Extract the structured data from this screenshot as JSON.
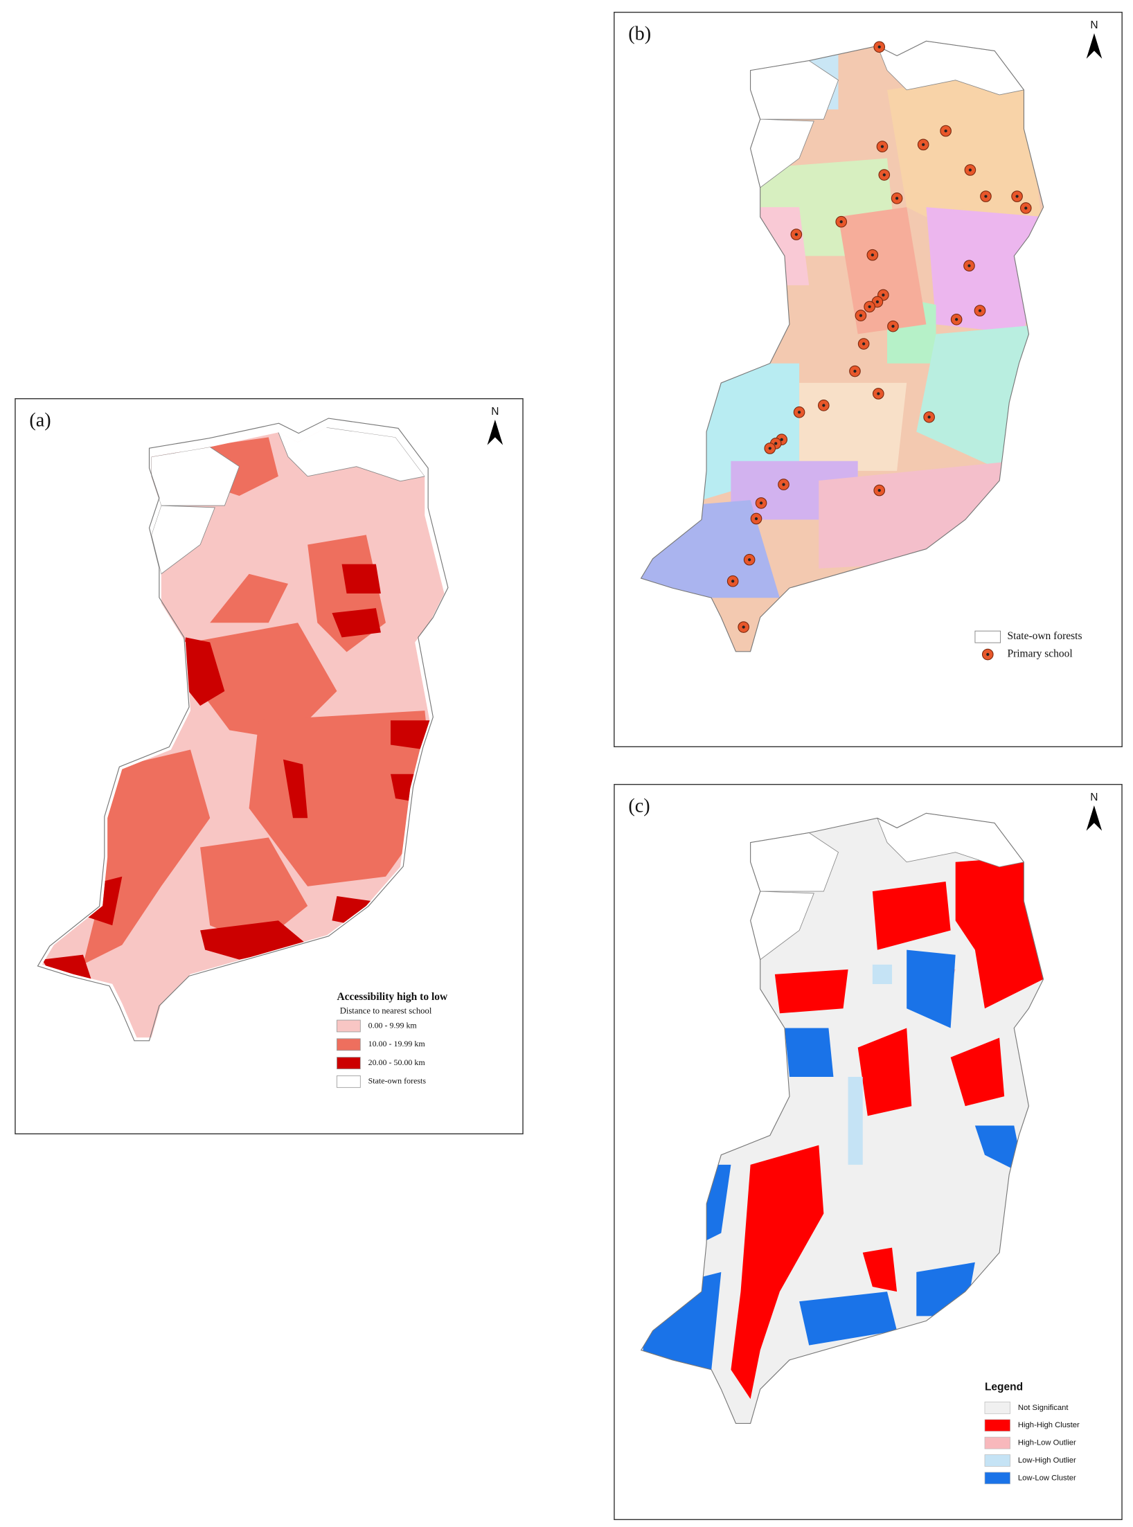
{
  "panels": [
    {
      "label": "(a)",
      "north": "N",
      "legend": {
        "title": "Accessibility high to low",
        "subtitle": "Distance to nearest school",
        "items": [
          "0.00 - 9.99 km",
          "10.00 - 19.99 km",
          "20.00 - 50.00 km",
          "State-own forests"
        ]
      }
    },
    {
      "label": "(b)",
      "north": "N",
      "legend": {
        "items": [
          "State-own forests",
          "Primary school"
        ]
      }
    },
    {
      "label": "(c)",
      "north": "N",
      "legend": {
        "title": "Legend",
        "items": [
          "Not Significant",
          "High-High Cluster",
          "High-Low Outlier",
          "Low-High Outlier",
          "Low-Low Cluster"
        ]
      }
    }
  ]
}
